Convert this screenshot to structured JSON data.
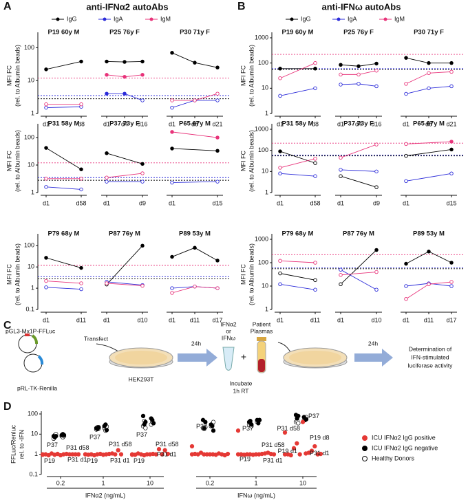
{
  "chart_data": [
    {
      "type": "line",
      "panel_label": "A",
      "title": "anti-IFNα2 autoAbs",
      "log_y": true,
      "y_label": [
        "MFI FC",
        "(rel. to Albumin beads)"
      ],
      "series": [
        {
          "name": "IgG",
          "color": "#000000",
          "threshold": 2.8
        },
        {
          "name": "IgA",
          "color": "#2b2bd9",
          "threshold": 3.5
        },
        {
          "name": "IgM",
          "color": "#e8337a",
          "threshold": 12
        }
      ],
      "rows": [
        {
          "ylim": [
            1,
            200
          ],
          "yticks": [
            1,
            10,
            100
          ],
          "panels": [
            {
              "title": "P19 60y M",
              "categories": [
                "d1",
                "d8"
              ],
              "values": [
                [
                  22,
                  38
                ],
                [
                  1.5,
                  1.6
                ],
                [
                  1.9,
                  1.9
                ]
              ]
            },
            {
              "title": "P25 76y F",
              "categories": [
                "d1",
                "d4",
                "d16"
              ],
              "values": [
                [
                  38,
                  37,
                  38
                ],
                [
                  4,
                  4,
                  2.5
                ],
                [
                  15,
                  13,
                  15
                ]
              ]
            },
            {
              "title": "P30 71y F",
              "categories": [
                "d1",
                "d8",
                "d21"
              ],
              "values": [
                [
                  70,
                  35,
                  25
                ],
                [
                  1.5,
                  2.5,
                  2.5
                ],
                [
                  2.5,
                  2.5,
                  4
                ]
              ]
            }
          ]
        },
        {
          "ylim": [
            1,
            200
          ],
          "yticks": [
            1,
            10,
            100
          ],
          "panels": [
            {
              "title": "P31 58y M",
              "categories": [
                "d1",
                "d58"
              ],
              "values": [
                [
                  42,
                  7
                ],
                [
                  1.6,
                  1.3
                ],
                [
                  3.2,
                  3.2
                ]
              ]
            },
            {
              "title": "P37 73y F",
              "categories": [
                "d1",
                "d9"
              ],
              "values": [
                [
                  27,
                  11
                ],
                [
                  2.5,
                  2.5
                ],
                [
                  3.5,
                  5
                ]
              ]
            },
            {
              "title": "P65 67y M",
              "categories": [
                "d1",
                "d15"
              ],
              "values": [
                [
                  40,
                  33
                ],
                [
                  2.3,
                  2.5
                ],
                [
                  160,
                  100
                ]
              ]
            }
          ]
        },
        {
          "ylim": [
            0.1,
            200
          ],
          "yticks": [
            0.1,
            1,
            10,
            100
          ],
          "panels": [
            {
              "title": "P79 68y M",
              "categories": [
                "d1",
                "d11"
              ],
              "values": [
                [
                  27,
                  9
                ],
                [
                  1.1,
                  0.9
                ],
                [
                  2.2,
                  1.7
                ]
              ]
            },
            {
              "title": "P87 76y M",
              "categories": [
                "d1",
                "d10"
              ],
              "values": [
                [
                  1.5,
                  100
                ],
                [
                  2,
                  1.4
                ],
                [
                  1.7,
                  1.3
                ]
              ]
            },
            {
              "title": "P89 53y M",
              "categories": [
                "d1",
                "d11",
                "d17"
              ],
              "values": [
                [
                  30,
                  80,
                  20
                ],
                [
                  1,
                  1.2,
                  1
                ],
                [
                  0.6,
                  1.2,
                  1
                ]
              ]
            }
          ]
        }
      ]
    },
    {
      "type": "line",
      "panel_label": "B",
      "title": "anti-IFNω autoAbs",
      "log_y": true,
      "y_label": [
        "MFI FC",
        "(rel. to Albumin beads)"
      ],
      "series": [
        {
          "name": "IgG",
          "color": "#000000",
          "threshold": 55
        },
        {
          "name": "IgA",
          "color": "#2b2bd9",
          "threshold": 60
        },
        {
          "name": "IgM",
          "color": "#e8337a",
          "threshold": 220
        }
      ],
      "rows": [
        {
          "ylim": [
            1,
            1000
          ],
          "yticks": [
            1,
            10,
            100,
            1000
          ],
          "panels": [
            {
              "title": "P19 60y M",
              "categories": [
                "d1",
                "d8"
              ],
              "values": [
                [
                  60,
                  60
                ],
                [
                  5,
                  10
                ],
                [
                  25,
                  100
                ]
              ]
            },
            {
              "title": "P25 76y F",
              "categories": [
                "d1",
                "d4",
                "d16"
              ],
              "values": [
                [
                  85,
                  75,
                  95
                ],
                [
                  14,
                  15,
                  12
                ],
                [
                  35,
                  35,
                  50
                ]
              ]
            },
            {
              "title": "P30 71y F",
              "categories": [
                "d1",
                "d8",
                "d21"
              ],
              "values": [
                [
                  160,
                  100,
                  100
                ],
                [
                  6,
                  10,
                  12
                ],
                [
                  15,
                  40,
                  45
                ]
              ]
            }
          ]
        },
        {
          "ylim": [
            1,
            1000
          ],
          "yticks": [
            1,
            10,
            100,
            1000
          ],
          "panels": [
            {
              "title": "P31 58y M",
              "categories": [
                "d1",
                "d58"
              ],
              "values": [
                [
                  90,
                  25
                ],
                [
                  8,
                  6
                ],
                [
                  15,
                  40
                ]
              ]
            },
            {
              "title": "P37 73y F",
              "categories": [
                "d1",
                "d9"
              ],
              "values": [
                [
                  6,
                  1.8
                ],
                [
                  12,
                  10
                ],
                [
                  45,
                  190
                ]
              ]
            },
            {
              "title": "P65 67y M",
              "categories": [
                "d1",
                "d15"
              ],
              "values": [
                [
                  55,
                  110
                ],
                [
                  3.5,
                  8
                ],
                [
                  200,
                  260
                ]
              ]
            }
          ]
        },
        {
          "ylim": [
            1,
            1000
          ],
          "yticks": [
            1,
            10,
            100,
            1000
          ],
          "panels": [
            {
              "title": "P79 68y M",
              "categories": [
                "d1",
                "d11"
              ],
              "values": [
                [
                  35,
                  18
                ],
                [
                  12,
                  7
                ],
                [
                  120,
                  100
                ]
              ]
            },
            {
              "title": "P87 76y M",
              "categories": [
                "d1",
                "d10"
              ],
              "values": [
                [
                  12,
                  350
                ],
                [
                  50,
                  7
                ],
                [
                  30,
                  40
                ]
              ]
            },
            {
              "title": "P89 53y M",
              "categories": [
                "d1",
                "d11",
                "d17"
              ],
              "values": [
                [
                  90,
                  300,
                  100
                ],
                [
                  10,
                  13,
                  10
                ],
                [
                  2.8,
                  12,
                  15
                ]
              ]
            }
          ]
        }
      ]
    },
    {
      "type": "strip",
      "panel_label": "D",
      "log_y": true,
      "y_label": [
        "FFLuc/Renluc",
        "rel. to -IFN"
      ],
      "ylim": [
        0.1,
        100
      ],
      "yticks": [
        0.1,
        1,
        10,
        100
      ],
      "groups": [
        {
          "label": "IFNα2 (ng/mL)",
          "categories": [
            "0.2",
            "1",
            "10"
          ]
        },
        {
          "label": "IFNω (ng/mL)",
          "categories": [
            "0.2",
            "1",
            "10"
          ]
        }
      ],
      "series": [
        {
          "name": "ICU IFNα2 IgG positive",
          "color": "#e53935",
          "values": [
            [
              0.95,
              1,
              1,
              1.05,
              0.9,
              1,
              1.1,
              1,
              0.95,
              1,
              1.05,
              1,
              0.9,
              1
            ],
            [
              1,
              1,
              0.95,
              1.05,
              1,
              1.1,
              0.9,
              1,
              1,
              1.6,
              1.05,
              1,
              0.95,
              1
            ],
            [
              1,
              1.05,
              0.95,
              1,
              1.1,
              1.8,
              1,
              1,
              0.9,
              1.6,
              1,
              1.05,
              1,
              0.95
            ],
            [
              1,
              1,
              1.05,
              0.95,
              1,
              1.1,
              1.2,
              1,
              1,
              0.9,
              1,
              1.05,
              1,
              2.5
            ],
            [
              1,
              1,
              1,
              1.05,
              0.95,
              1.1,
              1,
              1.2,
              1,
              1.05,
              0.95,
              1,
              1,
              15
            ],
            [
              1,
              1.1,
              1,
              1.2,
              0.9,
              1.5,
              2,
              2.5,
              3.5,
              1,
              1,
              1.05,
              40,
              12
            ]
          ]
        },
        {
          "name": "ICU IFNα2 IgG negative",
          "color": "#000000",
          "values": [
            [
              8,
              9,
              7,
              10,
              8,
              9
            ],
            [
              20,
              25,
              18,
              30,
              22,
              16
            ],
            [
              80,
              60,
              30,
              50,
              40,
              35
            ],
            [
              50,
              30,
              20,
              25,
              40,
              15
            ],
            [
              40,
              50,
              45,
              35,
              30,
              50
            ],
            [
              90,
              70,
              60,
              50,
              80,
              55
            ]
          ]
        },
        {
          "name": "Healthy Donors",
          "color": "#ffffff",
          "values": [
            [
              6,
              8,
              9,
              7,
              10,
              8
            ],
            [
              17,
              20,
              22,
              15,
              19,
              24
            ],
            [
              25,
              30,
              45,
              40,
              20,
              35
            ],
            [
              20,
              25,
              18,
              30,
              22,
              40
            ],
            [
              30,
              40,
              35,
              45,
              25,
              50
            ],
            [
              40,
              50,
              45,
              60,
              35,
              70
            ]
          ]
        }
      ],
      "annotations": [
        [
          {
            "text": "P37",
            "value": 6
          },
          {
            "text": "P31 d58",
            "value": 1.1
          },
          {
            "text": "P31 d1",
            "value": 0.95
          },
          {
            "text": "P19",
            "value": 1
          }
        ],
        [
          {
            "text": "P37",
            "value": 15
          },
          {
            "text": "P31 d58",
            "value": 1.6
          },
          {
            "text": "P31 d1",
            "value": 0.9
          },
          {
            "text": "P19",
            "value": 1
          }
        ],
        [
          {
            "text": "P37",
            "value": 20
          },
          {
            "text": "P31 d58",
            "value": 1.6
          },
          {
            "text": "P31 d1",
            "value": 1.8
          },
          {
            "text": "P19",
            "value": 1
          }
        ],
        [
          {
            "text": "P37",
            "value": 50
          }
        ],
        [
          {
            "text": "P37",
            "value": 40
          },
          {
            "text": "P31 d58",
            "value": 1.5
          },
          {
            "text": "P31 d1",
            "value": 0.9
          },
          {
            "text": "P19",
            "value": 1.2
          }
        ],
        [
          {
            "text": "P31 d58",
            "value": 40
          },
          {
            "text": "P37",
            "value": 40
          },
          {
            "text": "P19 d8",
            "value": 12
          },
          {
            "text": "P19 d1",
            "value": 3
          },
          {
            "text": "P31 d1",
            "value": 1.1
          }
        ]
      ]
    }
  ],
  "diagram": {
    "panel_label": "C",
    "plasmid1": "pGL3-Mx1P-FFLuc",
    "plasmid2": "pRL-TK-Renilla",
    "transfect": "Transfect",
    "cells": "HEK293T",
    "time1": "24h",
    "ifn1": "IFNα2",
    "or": "or",
    "ifn2": "IFNω",
    "plus": "+",
    "patient": "Patient",
    "plasmas": "Plasmas",
    "incubate": "Incubate",
    "incubate_time": "1h RT",
    "time2": "24h",
    "readout": [
      "Determination of",
      "IFN-stimulated",
      "luciferase activity"
    ]
  }
}
